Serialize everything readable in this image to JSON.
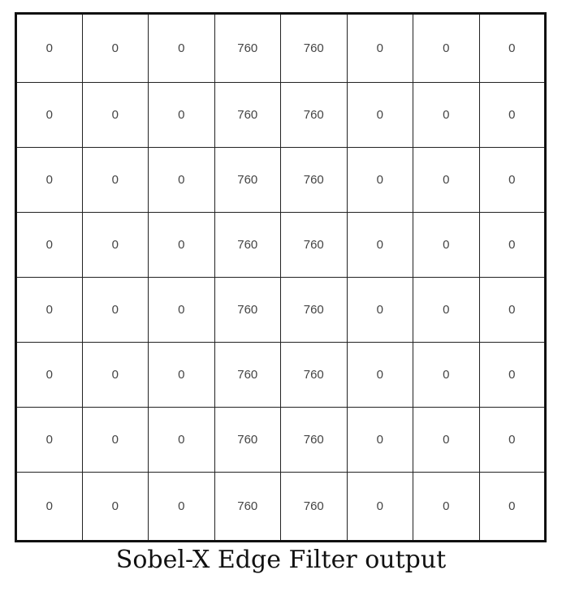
{
  "table": {
    "rows": [
      [
        "0",
        "0",
        "0",
        "760",
        "760",
        "0",
        "0",
        "0"
      ],
      [
        "0",
        "0",
        "0",
        "760",
        "760",
        "0",
        "0",
        "0"
      ],
      [
        "0",
        "0",
        "0",
        "760",
        "760",
        "0",
        "0",
        "0"
      ],
      [
        "0",
        "0",
        "0",
        "760",
        "760",
        "0",
        "0",
        "0"
      ],
      [
        "0",
        "0",
        "0",
        "760",
        "760",
        "0",
        "0",
        "0"
      ],
      [
        "0",
        "0",
        "0",
        "760",
        "760",
        "0",
        "0",
        "0"
      ],
      [
        "0",
        "0",
        "0",
        "760",
        "760",
        "0",
        "0",
        "0"
      ],
      [
        "0",
        "0",
        "0",
        "760",
        "760",
        "0",
        "0",
        "0"
      ]
    ]
  },
  "caption": "Sobel-X Edge Filter output"
}
